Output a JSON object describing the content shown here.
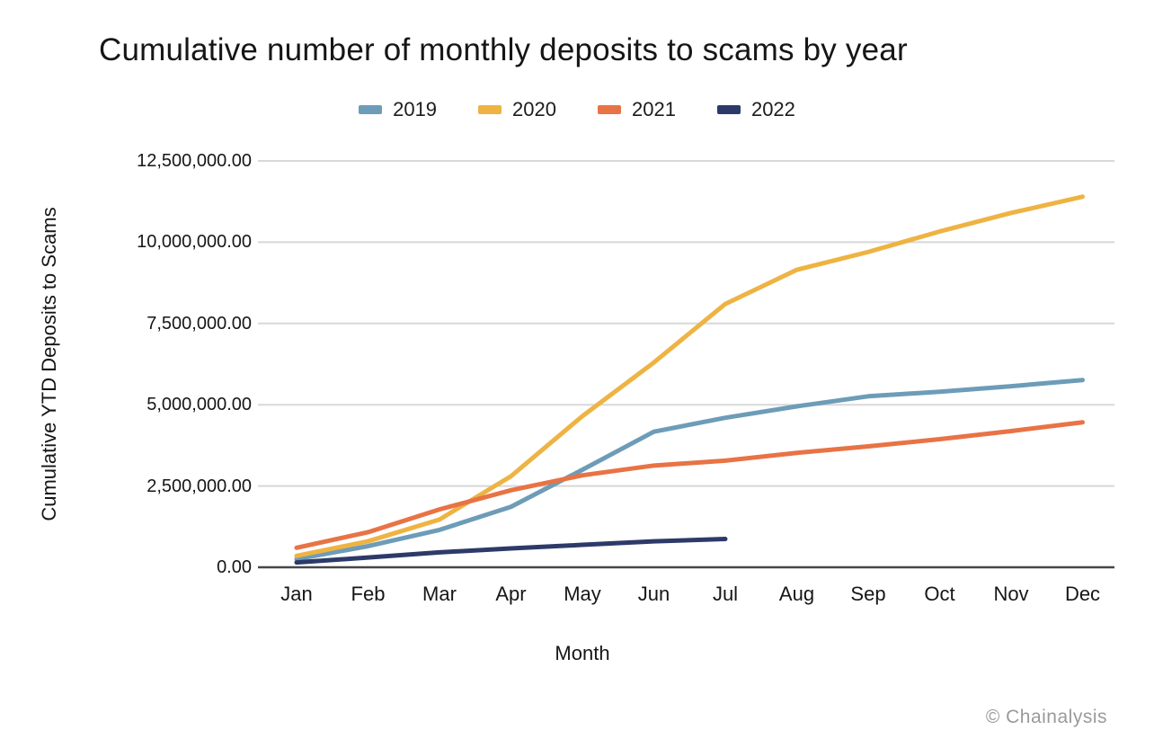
{
  "attribution": "© Chainalysis",
  "chart_data": {
    "type": "line",
    "title": "Cumulative number of monthly deposits to scams by year",
    "xlabel": "Month",
    "ylabel": "Cumulative YTD Deposits to Scams",
    "ylim": [
      0,
      12500000
    ],
    "grid": true,
    "legend_position": "top",
    "grid_color": "#d8d8d8",
    "axis_color": "#474747",
    "categories": [
      "Jan",
      "Feb",
      "Mar",
      "Apr",
      "May",
      "Jun",
      "Jul",
      "Aug",
      "Sep",
      "Oct",
      "Nov",
      "Dec"
    ],
    "yticks": [
      {
        "value": 0,
        "label": "0.00"
      },
      {
        "value": 2500000,
        "label": "2,500,000.00"
      },
      {
        "value": 5000000,
        "label": "5,000,000.00"
      },
      {
        "value": 7500000,
        "label": "7,500,000.00"
      },
      {
        "value": 10000000,
        "label": "10,000,000.00"
      },
      {
        "value": 12500000,
        "label": "12,500,000.00"
      }
    ],
    "series": [
      {
        "name": "2019",
        "color": "#6d9cb8",
        "values": [
          250000,
          650000,
          1150000,
          1860000,
          3000000,
          4170000,
          4600000,
          4950000,
          5260000,
          5400000,
          5570000,
          5760000
        ]
      },
      {
        "name": "2020",
        "color": "#eeb343",
        "values": [
          350000,
          800000,
          1470000,
          2800000,
          4650000,
          6300000,
          8100000,
          9150000,
          9700000,
          10330000,
          10900000,
          11400000
        ]
      },
      {
        "name": "2021",
        "color": "#e87345",
        "values": [
          600000,
          1080000,
          1780000,
          2370000,
          2830000,
          3130000,
          3280000,
          3520000,
          3720000,
          3940000,
          4190000,
          4460000
        ]
      },
      {
        "name": "2022",
        "color": "#2d3a69",
        "values": [
          150000,
          300000,
          460000,
          580000,
          690000,
          800000,
          870000
        ]
      }
    ]
  }
}
